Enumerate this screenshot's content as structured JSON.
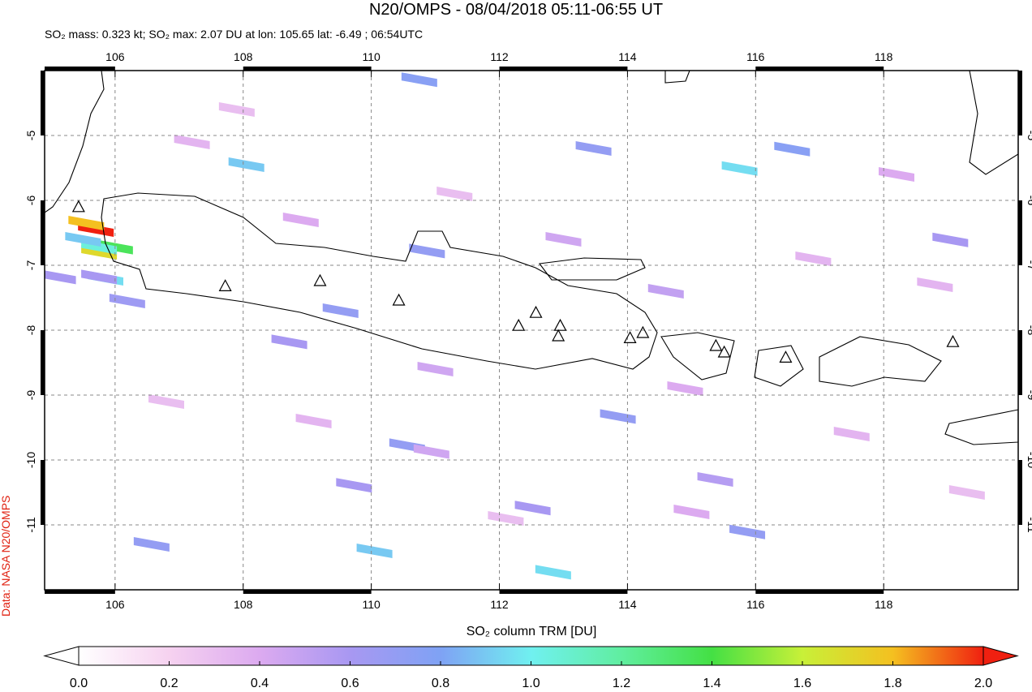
{
  "title": "N20/OMPS - 08/04/2018 05:11-06:55 UT",
  "subtitle": "SO₂ mass: 0.323 kt; SO₂ max: 2.07 DU at lon: 105.65 lat: -6.49 ; 06:54UTC",
  "credit": "Data: NASA N20/OMPS",
  "map": {
    "xlim": [
      104.9,
      120.1
    ],
    "ylim": [
      -12.0,
      -4.0
    ],
    "xticks": [
      106,
      108,
      110,
      112,
      114,
      116,
      118
    ],
    "yticks": [
      -5,
      -6,
      -7,
      -8,
      -9,
      -10,
      -11
    ],
    "grid": true,
    "volcano_lon": [
      105.43,
      107.72,
      109.2,
      110.43,
      112.3,
      112.57,
      112.95,
      112.92,
      114.04,
      114.24,
      115.38,
      115.51,
      116.47,
      119.08
    ],
    "volcano_lat": [
      -6.11,
      -7.33,
      -7.25,
      -7.55,
      -7.94,
      -7.74,
      -7.94,
      -8.1,
      -8.13,
      -8.05,
      -8.25,
      -8.35,
      -8.43,
      -8.19
    ],
    "pixel_lon": [
      105.7,
      105.55,
      105.75,
      106.0,
      105.75,
      105.5,
      105.85,
      110.75,
      108.05,
      110.87,
      109.52,
      110.56,
      110.05,
      112.84,
      112.52,
      109.73,
      113.47,
      116.57,
      115.75,
      113.85,
      115.87,
      119.04,
      115.37,
      105.75,
      106.19,
      105.11,
      108.72,
      106.57,
      110.94,
      107.2,
      108.9,
      111.3,
      113.0,
      114.6,
      116.9,
      118.2,
      106.8,
      109.1,
      112.1,
      114.9,
      117.5,
      119.3,
      107.9,
      111.0,
      115.0,
      118.8
    ],
    "pixel_lat": [
      -6.45,
      -6.35,
      -6.8,
      -6.72,
      -6.72,
      -6.6,
      -7.2,
      -4.14,
      -5.45,
      -6.78,
      -7.7,
      -9.78,
      -11.4,
      -11.73,
      -10.74,
      -10.39,
      -5.2,
      -5.21,
      -5.51,
      -9.33,
      -11.11,
      -6.61,
      -10.3,
      -7.18,
      -7.55,
      -7.18,
      -8.18,
      -11.3,
      -9.87,
      -5.1,
      -6.3,
      -5.9,
      -6.6,
      -7.4,
      -6.9,
      -5.6,
      -9.1,
      -9.4,
      -10.9,
      -8.9,
      -9.6,
      -10.5,
      -4.6,
      -8.6,
      -10.8,
      -7.3
    ],
    "pixel_values": [
      2.07,
      1.8,
      1.7,
      1.35,
      1.05,
      0.9,
      0.95,
      0.75,
      0.9,
      0.7,
      0.7,
      0.7,
      0.9,
      0.95,
      0.6,
      0.6,
      0.7,
      0.75,
      0.95,
      0.7,
      0.7,
      0.6,
      0.55,
      0.6,
      0.65,
      0.6,
      0.6,
      0.7,
      0.45,
      0.35,
      0.4,
      0.3,
      0.45,
      0.5,
      0.35,
      0.4,
      0.3,
      0.35,
      0.3,
      0.4,
      0.35,
      0.3,
      0.3,
      0.45,
      0.4,
      0.35
    ]
  },
  "colorbar": {
    "label": "SO₂ column TRM [DU]",
    "lim": [
      0,
      2
    ],
    "colors": [
      "#ffffff",
      "#f6d2f0",
      "#dcaaf0",
      "#a898f2",
      "#7fa2f4",
      "#70f0f0",
      "#60eea0",
      "#44e044",
      "#c8f038",
      "#f4c020",
      "#f02010"
    ],
    "ticks": [
      {
        "value": 0,
        "label": "0.0"
      },
      {
        "value": 0.2,
        "label": "0.2"
      },
      {
        "value": 0.4,
        "label": "0.4"
      },
      {
        "value": 0.6,
        "label": "0.6"
      },
      {
        "value": 0.8,
        "label": "0.8"
      },
      {
        "value": 1,
        "label": "1.0"
      },
      {
        "value": 1.2,
        "label": "1.2"
      },
      {
        "value": 1.4,
        "label": "1.4"
      },
      {
        "value": 1.6,
        "label": "1.6"
      },
      {
        "value": 1.8,
        "label": "1.8"
      },
      {
        "value": 2,
        "label": "2.0"
      }
    ]
  }
}
